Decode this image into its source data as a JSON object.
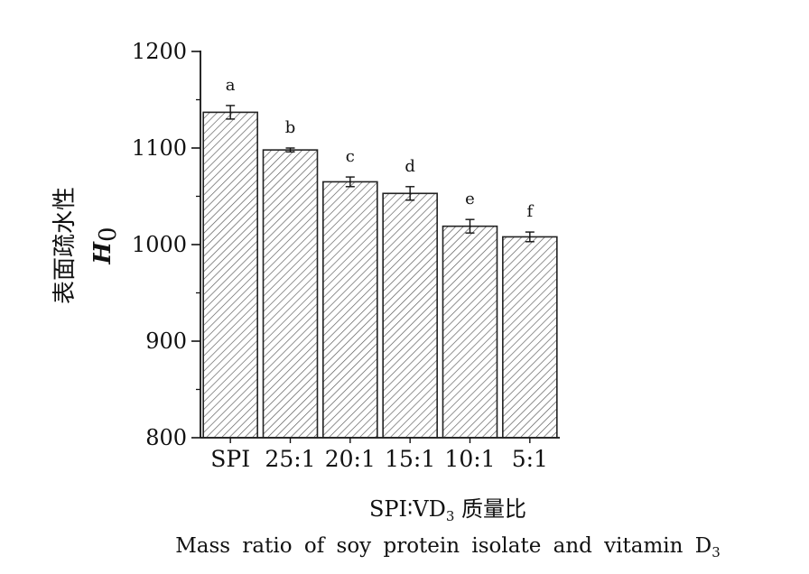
{
  "chart_data": {
    "type": "bar",
    "categories": [
      "SPI",
      "25:1",
      "20:1",
      "15:1",
      "10:1",
      "5:1"
    ],
    "values": [
      1137,
      1098,
      1065,
      1053,
      1019,
      1008
    ],
    "errors": [
      7,
      2,
      5,
      7,
      7,
      5
    ],
    "significance_letters": [
      "a",
      "b",
      "c",
      "d",
      "e",
      "f"
    ],
    "ylim": [
      800,
      1200
    ],
    "yticks": [
      800,
      900,
      1000,
      1100,
      1200
    ],
    "ylabel_cn": "表面疏水性",
    "ylabel_symbol": "H",
    "ylabel_subscript": "0",
    "xlabel_cn_prefix": "SPI∶VD",
    "xlabel_cn_subscript": "3",
    "xlabel_cn_suffix": " 质量比",
    "xlabel_en_prefix": "Mass ratio of soy protein isolate and vitamin D",
    "xlabel_en_subscript": "3",
    "grid": false,
    "legend": "none",
    "bar_fill": "hatched",
    "colors": {
      "bar_stroke": "#222222",
      "hatch": "#555555",
      "axis": "#111111"
    }
  }
}
